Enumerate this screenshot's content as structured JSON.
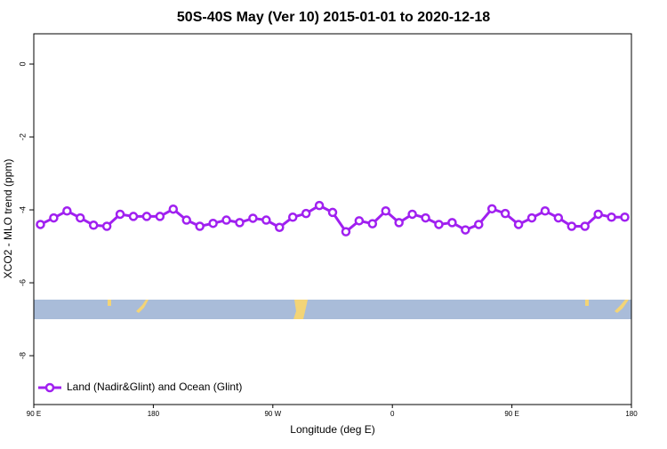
{
  "chart_data": {
    "type": "line",
    "title": "50S-40S May (Ver 10)   2015-01-01 to 2020-12-18",
    "x_label": "Longitude (deg E)",
    "y_label": "XCO2 - MLO trend (ppm)",
    "x": [
      95,
      105,
      115,
      125,
      135,
      145,
      155,
      165,
      175,
      185,
      195,
      205,
      215,
      225,
      235,
      245,
      255,
      265,
      275,
      285,
      295,
      305,
      315,
      325,
      335,
      345,
      355,
      365,
      375,
      385,
      395,
      405,
      415,
      425,
      435,
      445,
      455,
      465,
      475,
      485,
      495,
      505,
      515,
      525,
      535
    ],
    "series": [
      {
        "name": "Land (Nadir&Glint) and Ocean (Glint)",
        "color": "#a020f0",
        "values": [
          -4.4,
          -4.22,
          -4.03,
          -4.22,
          -4.42,
          -4.45,
          -4.12,
          -4.18,
          -4.18,
          -4.18,
          -3.98,
          -4.28,
          -4.45,
          -4.37,
          -4.28,
          -4.35,
          -4.23,
          -4.28,
          -4.48,
          -4.2,
          -4.1,
          -3.88,
          -4.07,
          -4.6,
          -4.3,
          -4.38,
          -4.03,
          -4.35,
          -4.12,
          -4.22,
          -4.4,
          -4.35,
          -4.55,
          -4.4,
          -3.97,
          -4.1,
          -4.4,
          -4.22,
          -4.03,
          -4.22,
          -4.45,
          -4.45,
          -4.12,
          -4.2,
          -4.2
        ]
      }
    ],
    "xlim": [
      90,
      540
    ],
    "xticks": [
      {
        "value": 90,
        "label": "90 E"
      },
      180,
      {
        "value": 270,
        "label": "90 W"
      },
      {
        "value": 360,
        "label": "0"
      },
      {
        "value": 450,
        "label": "90 E"
      },
      {
        "value": 540,
        "label": "180"
      }
    ],
    "ylim": [
      -9.34,
      0.83
    ],
    "yticks": [
      0,
      -2,
      -4,
      -6,
      -8
    ],
    "legend": "bottom-left"
  }
}
